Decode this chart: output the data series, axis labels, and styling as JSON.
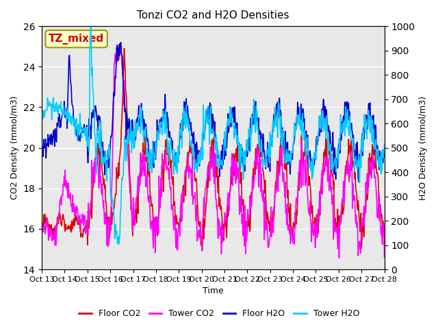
{
  "title": "Tonzi CO2 and H2O Densities",
  "xlabel": "Time",
  "ylabel_left": "CO2 Density (mmol/m3)",
  "ylabel_right": "H2O Density (mmol/m3)",
  "annotation": "TZ_mixed",
  "annotation_color": "#cc0000",
  "annotation_bg": "#ffffcc",
  "annotation_border": "#999900",
  "x_tick_labels": [
    "Oct 13",
    "Oct 14",
    "Oct 15",
    "Oct 16",
    "Oct 17",
    "Oct 18",
    "Oct 19",
    "Oct 20",
    "Oct 21",
    "Oct 22",
    "Oct 23",
    "Oct 24",
    "Oct 25",
    "Oct 26",
    "Oct 27",
    "Oct 28"
  ],
  "ylim_left": [
    14,
    26
  ],
  "ylim_right": [
    0,
    1000
  ],
  "yticks_left": [
    14,
    16,
    18,
    20,
    22,
    24,
    26
  ],
  "yticks_right": [
    0,
    100,
    200,
    300,
    400,
    500,
    600,
    700,
    800,
    900,
    1000
  ],
  "floor_co2_color": "#dd0000",
  "tower_co2_color": "#ff00ff",
  "floor_h2o_color": "#0000cc",
  "tower_h2o_color": "#00ccff",
  "line_width": 1.2,
  "legend_labels": [
    "Floor CO2",
    "Tower CO2",
    "Floor H2O",
    "Tower H2O"
  ],
  "bg_color": "#e8e8e8",
  "grid_color": "#ffffff"
}
